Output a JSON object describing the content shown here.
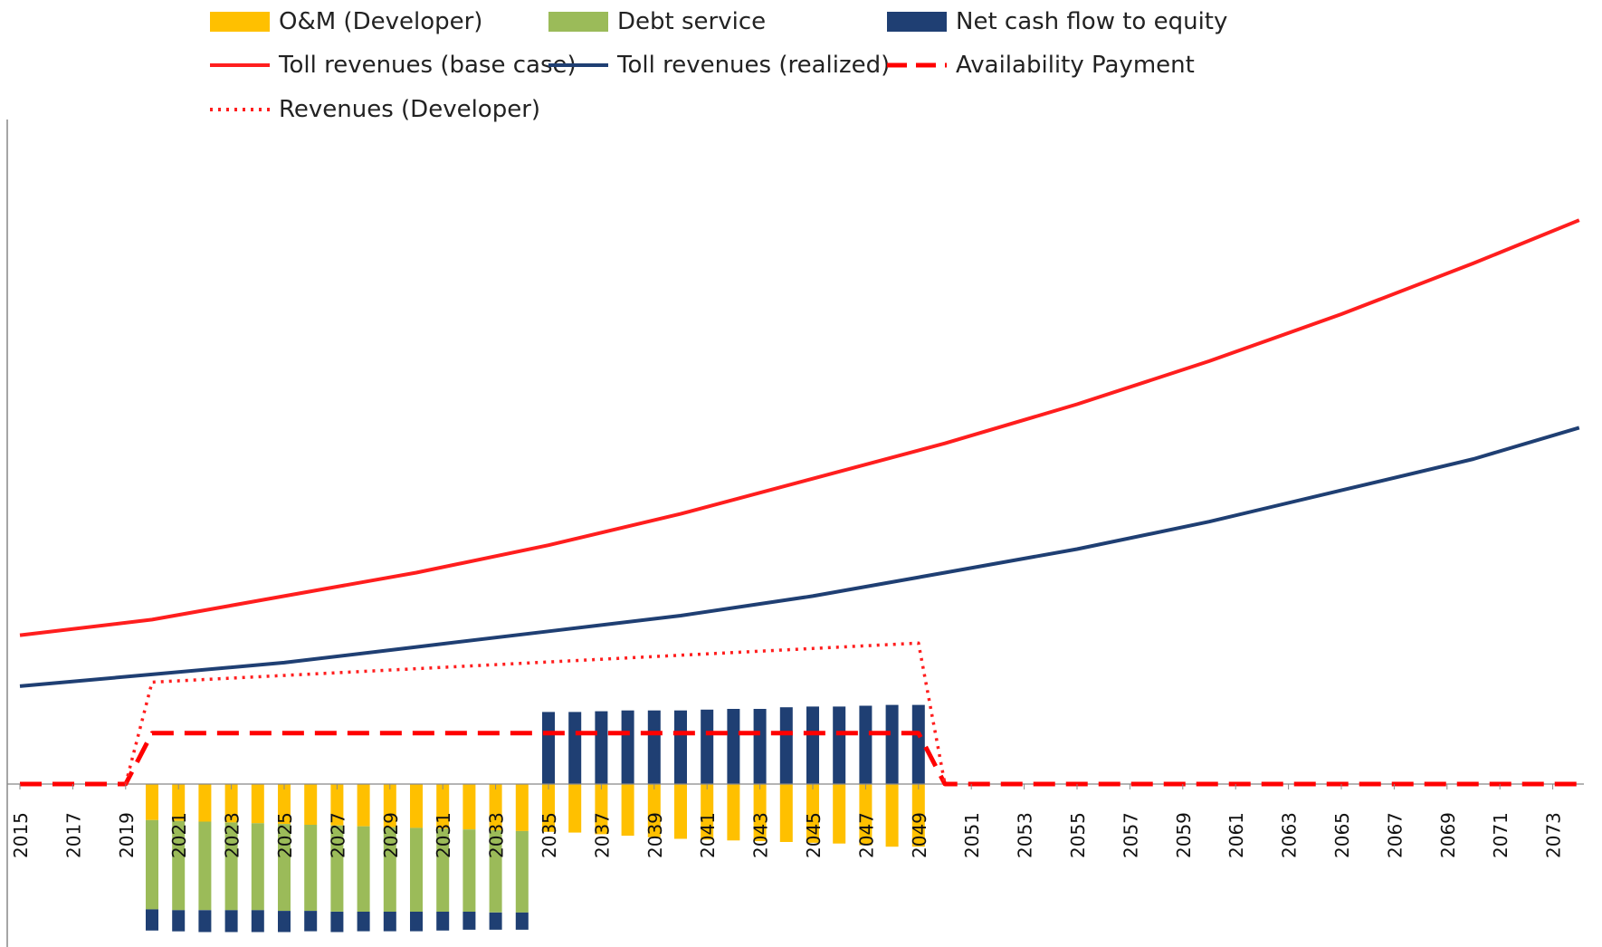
{
  "chart_data": {
    "type": "bar",
    "title": "",
    "xlabel": "",
    "ylabel": "",
    "ylim": [
      -2.0,
      8.5
    ],
    "x_start": 2015,
    "x_end": 2074,
    "tick_labels": [
      "2015",
      "2017",
      "2019",
      "2021",
      "2023",
      "2025",
      "2027",
      "2029",
      "2031",
      "2033",
      "2035",
      "2037",
      "2039",
      "2041",
      "2043",
      "2045",
      "2047",
      "2049",
      "2051",
      "2053",
      "2055",
      "2057",
      "2059",
      "2061",
      "2063",
      "2065",
      "2067",
      "2069",
      "2071",
      "2073"
    ],
    "grid": false,
    "legend_position": "top",
    "series": [
      {
        "name": "O&M (Developer)",
        "kind": "bar",
        "color": "#FFC000",
        "x": [
          2020,
          2021,
          2022,
          2023,
          2024,
          2025,
          2026,
          2027,
          2028,
          2029,
          2030,
          2031,
          2032,
          2033,
          2034,
          2035,
          2036,
          2037,
          2038,
          2039,
          2040,
          2041,
          2042,
          2043,
          2044,
          2045,
          2046,
          2047,
          2048,
          2049
        ],
        "values": [
          -0.46,
          -0.47,
          -0.48,
          -0.49,
          -0.5,
          -0.51,
          -0.52,
          -0.53,
          -0.54,
          -0.55,
          -0.56,
          -0.57,
          -0.58,
          -0.59,
          -0.6,
          -0.61,
          -0.62,
          -0.64,
          -0.66,
          -0.68,
          -0.7,
          -0.71,
          -0.72,
          -0.73,
          -0.74,
          -0.75,
          -0.76,
          -0.78,
          -0.8,
          -0.8
        ]
      },
      {
        "name": "Debt service",
        "kind": "bar",
        "color": "#9BBB59",
        "x": [
          2020,
          2021,
          2022,
          2023,
          2024,
          2025,
          2026,
          2027,
          2028,
          2029,
          2030,
          2031,
          2032,
          2033,
          2034
        ],
        "values": [
          -1.14,
          -1.14,
          -1.13,
          -1.12,
          -1.11,
          -1.11,
          -1.1,
          -1.1,
          -1.09,
          -1.08,
          -1.07,
          -1.06,
          -1.05,
          -1.05,
          -1.04
        ]
      },
      {
        "name": "Net cash flow to equity",
        "kind": "bar",
        "color": "#1F3F73",
        "x": [
          2020,
          2021,
          2022,
          2023,
          2024,
          2025,
          2026,
          2027,
          2028,
          2029,
          2030,
          2031,
          2032,
          2033,
          2034,
          2035,
          2036,
          2037,
          2038,
          2039,
          2040,
          2041,
          2042,
          2043,
          2044,
          2045,
          2046,
          2047,
          2048,
          2049
        ],
        "values": [
          -0.27,
          -0.27,
          -0.28,
          -0.28,
          -0.28,
          -0.27,
          -0.26,
          -0.26,
          -0.25,
          -0.25,
          -0.25,
          -0.24,
          -0.23,
          -0.22,
          -0.22,
          0.92,
          0.92,
          0.93,
          0.94,
          0.94,
          0.94,
          0.95,
          0.96,
          0.96,
          0.98,
          0.99,
          0.99,
          1.0,
          1.01,
          1.01
        ]
      },
      {
        "name": "Toll revenues (base case)",
        "kind": "line",
        "style": "solid",
        "color": "#FF1E1E",
        "x": [
          2015,
          2020,
          2025,
          2030,
          2035,
          2040,
          2045,
          2050,
          2055,
          2060,
          2065,
          2070,
          2074
        ],
        "values": [
          1.9,
          2.1,
          2.4,
          2.7,
          3.05,
          3.45,
          3.9,
          4.35,
          4.85,
          5.4,
          6.0,
          6.65,
          7.2
        ]
      },
      {
        "name": "Toll revenues (realized)",
        "kind": "line",
        "style": "solid",
        "color": "#1F3F73",
        "x": [
          2015,
          2020,
          2025,
          2030,
          2035,
          2040,
          2045,
          2050,
          2055,
          2060,
          2065,
          2070,
          2074
        ],
        "values": [
          1.25,
          1.4,
          1.55,
          1.75,
          1.95,
          2.15,
          2.4,
          2.7,
          3.0,
          3.35,
          3.75,
          4.15,
          4.55
        ]
      },
      {
        "name": "Availability Payment",
        "kind": "line",
        "style": "dashed",
        "color": "#FF0000",
        "x": [
          2015,
          2019,
          2020,
          2049,
          2050,
          2074
        ],
        "values": [
          0,
          0,
          0.65,
          0.65,
          0,
          0
        ]
      },
      {
        "name": "Revenues (Developer)",
        "kind": "line",
        "style": "dotted",
        "color": "#FF1E1E",
        "x": [
          2019,
          2020,
          2049,
          2050
        ],
        "values": [
          0,
          1.3,
          1.8,
          0
        ]
      }
    ]
  }
}
